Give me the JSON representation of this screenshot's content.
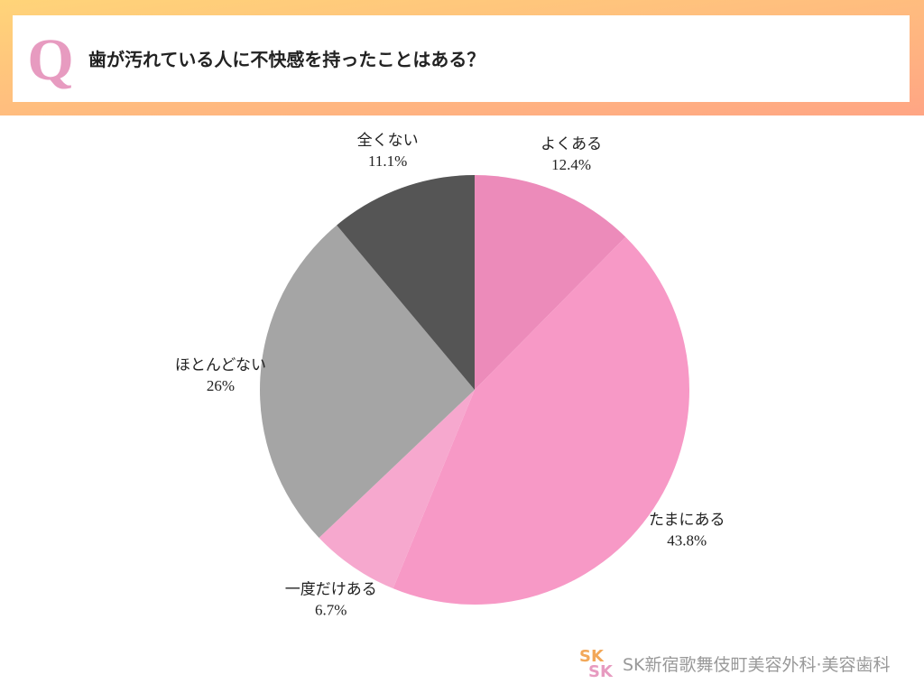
{
  "header": {
    "q": "Q",
    "title": "歯が汚れている人に不快感を持ったことはある？"
  },
  "chart_data": {
    "type": "pie",
    "categories": [
      "よくある",
      "たまにある",
      "一度だけある",
      "ほとんどない",
      "全くない"
    ],
    "values": [
      12.4,
      43.8,
      6.7,
      26,
      11.1
    ],
    "value_labels": [
      "12.4%",
      "43.8%",
      "6.7%",
      "26%",
      "11.1%"
    ],
    "colors": [
      "#ec8bba",
      "#f799c6",
      "#f6a8ce",
      "#a5a5a5",
      "#555555"
    ]
  },
  "footer": {
    "logo_icon": "SK",
    "logo": "SK新宿歌舞伎町美容外科·美容歯科"
  }
}
